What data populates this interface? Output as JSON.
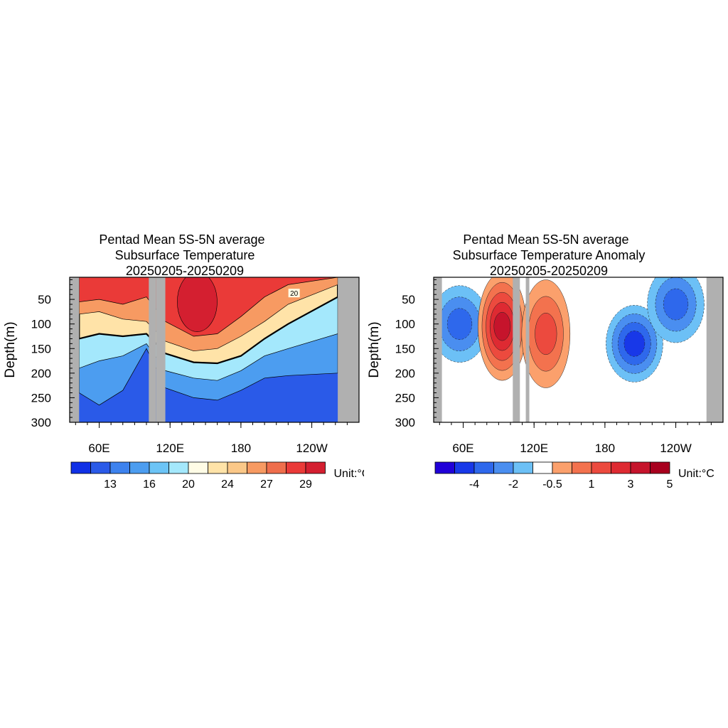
{
  "chart_data": [
    {
      "type": "heatmap",
      "title_lines": [
        "Pentad Mean 5S-5N average",
        "Subsurface Temperature",
        "20250205-20250209"
      ],
      "ylabel": "Depth(m)",
      "xlabel": "",
      "x_ticks": [
        "60E",
        "120E",
        "180",
        "120W"
      ],
      "y_ticks": [
        "50",
        "100",
        "150",
        "200",
        "250",
        "300"
      ],
      "xlim_longitude": [
        35,
        280
      ],
      "ylim_depth_m": [
        5,
        300
      ],
      "y_inverted": true,
      "land_mask_longitude_ranges": [
        [
          35,
          43
        ],
        [
          102,
          108
        ],
        [
          108,
          116
        ],
        [
          262,
          280
        ]
      ],
      "contour_label": "20",
      "colorbar": {
        "colors": [
          "#1030e6",
          "#2a5ae8",
          "#3d82ee",
          "#4c9df0",
          "#6cc4f6",
          "#a4e8fc",
          "#fffce6",
          "#ffe3a8",
          "#fbc888",
          "#f79a62",
          "#ef6e4c",
          "#ea3a38",
          "#d41f30"
        ],
        "labels": [
          "13",
          "16",
          "20",
          "24",
          "27",
          "29"
        ],
        "unit": "Unit:°C"
      },
      "profile_levels_m": [
        {
          "level_c": 28,
          "depth_by_lon": [
            [
              43,
              55
            ],
            [
              60,
              50
            ],
            [
              80,
              60
            ],
            [
              100,
              45
            ],
            [
              116,
              95
            ],
            [
              140,
              125
            ],
            [
              160,
              120
            ],
            [
              180,
              85
            ],
            [
              200,
              45
            ],
            [
              220,
              20
            ],
            [
              262,
              5
            ]
          ]
        },
        {
          "level_c": 24,
          "depth_by_lon": [
            [
              43,
              80
            ],
            [
              60,
              75
            ],
            [
              80,
              90
            ],
            [
              100,
              95
            ],
            [
              116,
              135
            ],
            [
              140,
              155
            ],
            [
              160,
              150
            ],
            [
              180,
              125
            ],
            [
              200,
              95
            ],
            [
              220,
              60
            ],
            [
              262,
              20
            ]
          ]
        },
        {
          "level_c": 20,
          "depth_by_lon": [
            [
              43,
              130
            ],
            [
              60,
              120
            ],
            [
              80,
              125
            ],
            [
              100,
              120
            ],
            [
              116,
              160
            ],
            [
              140,
              178
            ],
            [
              160,
              180
            ],
            [
              180,
              165
            ],
            [
              200,
              130
            ],
            [
              220,
              100
            ],
            [
              262,
              45
            ]
          ]
        },
        {
          "level_c": 16,
          "depth_by_lon": [
            [
              43,
              190
            ],
            [
              60,
              175
            ],
            [
              80,
              165
            ],
            [
              100,
              140
            ],
            [
              116,
              195
            ],
            [
              140,
              210
            ],
            [
              160,
              215
            ],
            [
              180,
              195
            ],
            [
              200,
              165
            ],
            [
              220,
              150
            ],
            [
              262,
              120
            ]
          ]
        },
        {
          "level_c": 13,
          "depth_by_lon": [
            [
              43,
              240
            ],
            [
              60,
              265
            ],
            [
              80,
              235
            ],
            [
              100,
              150
            ],
            [
              116,
              230
            ],
            [
              140,
              250
            ],
            [
              160,
              255
            ],
            [
              180,
              235
            ],
            [
              200,
              210
            ],
            [
              220,
              205
            ],
            [
              262,
              200
            ]
          ]
        }
      ]
    },
    {
      "type": "heatmap",
      "title_lines": [
        "Pentad Mean 5S-5N average",
        "Subsurface Temperature Anomaly",
        "20250205-20250209"
      ],
      "ylabel": "Depth(m)",
      "xlabel": "",
      "x_ticks": [
        "60E",
        "120E",
        "180",
        "120W"
      ],
      "y_ticks": [
        "50",
        "100",
        "150",
        "200",
        "250",
        "300"
      ],
      "xlim_longitude": [
        35,
        280
      ],
      "ylim_depth_m": [
        5,
        300
      ],
      "y_inverted": true,
      "land_mask_longitude_ranges": [
        [
          35,
          42
        ],
        [
          102,
          108
        ],
        [
          113,
          116
        ],
        [
          266,
          280
        ]
      ],
      "colorbar": {
        "colors": [
          "#2000d8",
          "#1838e8",
          "#2e68ec",
          "#4a8ef0",
          "#6cc0f6",
          "#ffffff",
          "#fba06c",
          "#f3724e",
          "#ec4a3e",
          "#de2a32",
          "#c6142c",
          "#a8001e"
        ],
        "labels": [
          "-4",
          "-2",
          "-0.5",
          "1",
          "3",
          "5"
        ],
        "unit": "Unit:°C"
      },
      "anomaly_features": [
        {
          "sign": "negative",
          "max_abs_c": 3,
          "center_lon": 57,
          "center_depth_m": 100
        },
        {
          "sign": "positive",
          "max_abs_c": 5,
          "center_lon": 93,
          "center_depth_m": 105
        },
        {
          "sign": "positive",
          "max_abs_c": 3,
          "center_lon": 130,
          "center_depth_m": 120
        },
        {
          "sign": "negative",
          "max_abs_c": 4,
          "center_lon": 205,
          "center_depth_m": 140
        },
        {
          "sign": "negative",
          "max_abs_c": 3,
          "center_lon": 240,
          "center_depth_m": 60
        }
      ]
    }
  ]
}
